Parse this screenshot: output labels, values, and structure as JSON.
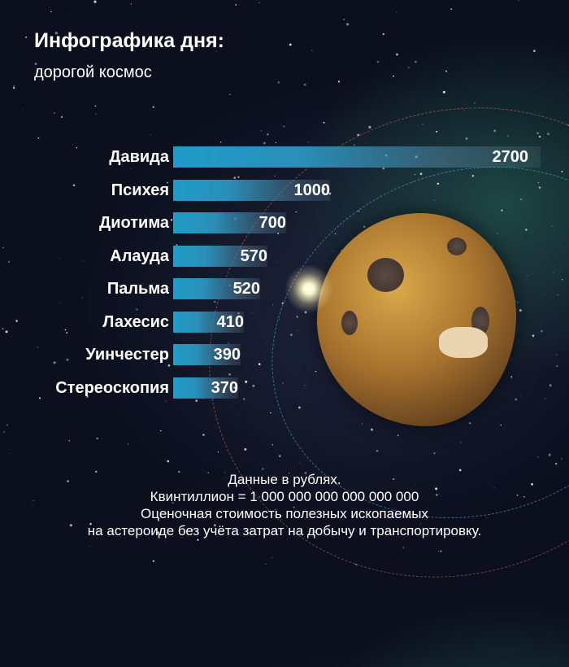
{
  "title": "Инфографика дня:",
  "subtitle": "дорогой космос",
  "chart_data": {
    "type": "bar",
    "orientation": "horizontal",
    "categories": [
      "Давида",
      "Психея",
      "Диотима",
      "Алауда",
      "Пальма",
      "Лахесис",
      "Уинчестер",
      "Стереоскопия"
    ],
    "values": [
      2700,
      1000,
      700,
      570,
      520,
      410,
      390,
      370
    ],
    "data_labels": [
      "2700",
      "1000",
      "700",
      "570",
      "520",
      "410",
      "390",
      "370"
    ],
    "bar_color": "#1e9cc8",
    "grid": false
  },
  "footer": [
    "Данные в рублях.",
    "Квинтиллион = 1 000 000 000 000 000 000",
    "Оценочная стоимость полезных ископаемых",
    "на астероиде без учёта затрат на добычу и транспортировку."
  ]
}
